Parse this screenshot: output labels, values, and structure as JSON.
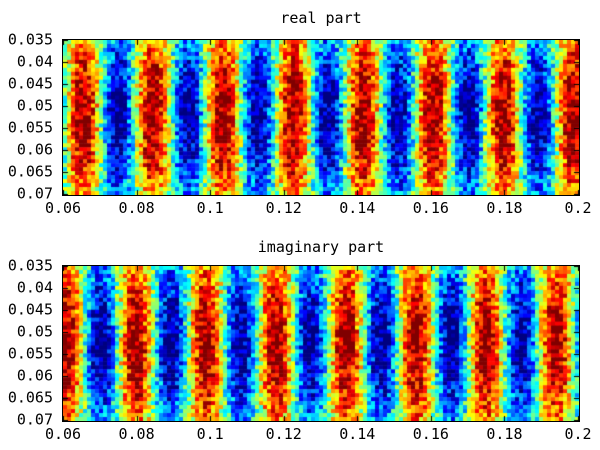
{
  "figure": {
    "background": "#ffffff",
    "frame_color": "#000000",
    "text_color": "#000000"
  },
  "chart_data": [
    {
      "type": "heatmap",
      "title": "real part",
      "xlabel": "",
      "ylabel": "",
      "x_range": [
        0.06,
        0.2
      ],
      "y_top": 0.035,
      "y_bottom": 0.07,
      "x_tick_labels": [
        "0.06",
        "0.08",
        "0.1",
        "0.12",
        "0.14",
        "0.16",
        "0.18",
        "0.2"
      ],
      "y_tick_labels": [
        "0.035",
        "0.04",
        "0.045",
        "0.05",
        "0.055",
        "0.06",
        "0.065",
        "0.07"
      ],
      "colormap": "jet",
      "legend": "none",
      "grid": false,
      "pattern": {
        "wave": "cos",
        "stripe_period_x": 0.019,
        "red_peak_x": 0.0655,
        "noise_amplitude": 0.33,
        "edge_fade_min_amplitude": 0.5,
        "grid_cols": 129,
        "grid_rows": 39,
        "seed": 1234567
      }
    },
    {
      "type": "heatmap",
      "title": "imaginary part",
      "xlabel": "",
      "ylabel": "",
      "x_range": [
        0.06,
        0.2
      ],
      "y_top": 0.035,
      "y_bottom": 0.07,
      "x_tick_labels": [
        "0.06",
        "0.08",
        "0.1",
        "0.12",
        "0.14",
        "0.16",
        "0.18",
        "0.2"
      ],
      "y_tick_labels": [
        "0.035",
        "0.04",
        "0.045",
        "0.05",
        "0.055",
        "0.06",
        "0.065",
        "0.07"
      ],
      "colormap": "jet",
      "legend": "none",
      "grid": false,
      "pattern": {
        "wave": "cos",
        "stripe_period_x": 0.019,
        "red_peak_x": 0.0608,
        "noise_amplitude": 0.33,
        "edge_fade_min_amplitude": 0.5,
        "grid_cols": 129,
        "grid_rows": 39,
        "seed": 7654321
      }
    }
  ]
}
